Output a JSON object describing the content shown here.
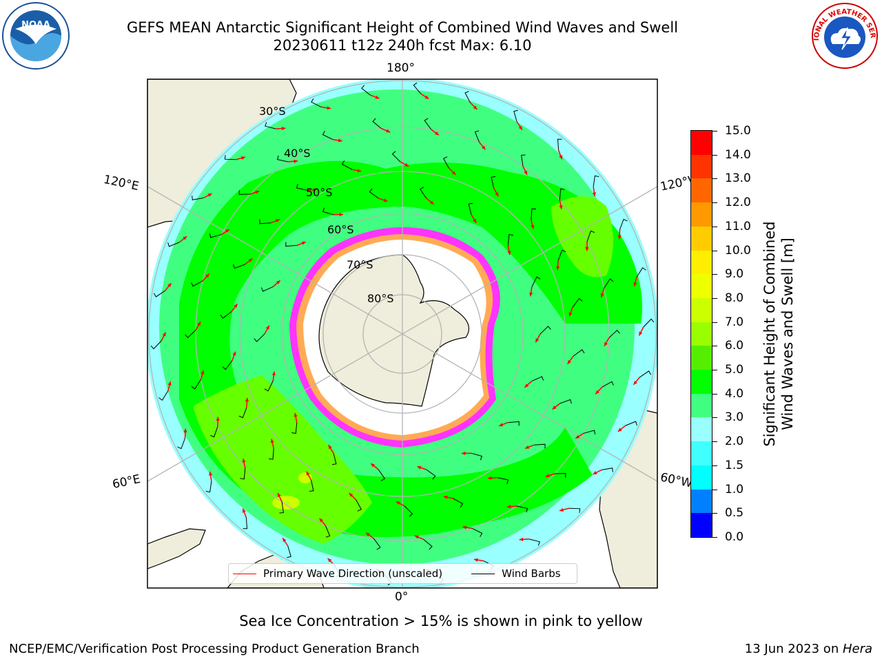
{
  "title": {
    "line1": "GEFS MEAN Antarctic Significant Height of Combined Wind Waves and Swell",
    "line2": "20230611 t12z 240h fcst   Max: 6.10"
  },
  "longitude_labels": {
    "top": "180°",
    "bottom": "0°",
    "upper_left": "120°E",
    "upper_right": "120°W",
    "lower_left": "60°E",
    "lower_right": "60°W"
  },
  "latitude_labels": [
    "30°S",
    "40°S",
    "50°S",
    "60°S",
    "70°S",
    "80°S"
  ],
  "colorbar": {
    "label": "Significant Height of Combined Wind Waves and Swell [m]",
    "label_line1": "Significant Height of Combined",
    "label_line2": "Wind Waves and Swell [m]",
    "ticks": [
      "0.0",
      "0.5",
      "1.0",
      "1.5",
      "2.0",
      "3.0",
      "4.0",
      "5.0",
      "6.0",
      "7.0",
      "8.0",
      "9.0",
      "10.0",
      "11.0",
      "12.0",
      "13.0",
      "14.0",
      "15.0"
    ],
    "colors": [
      "#0000ff",
      "#0080ff",
      "#00ffff",
      "#40ffff",
      "#99ffff",
      "#40ff80",
      "#00ff00",
      "#55ee00",
      "#99ff00",
      "#ccff00",
      "#eeff00",
      "#ffee00",
      "#ffcc00",
      "#ff9900",
      "#ff6600",
      "#ff3300",
      "#ff0000"
    ]
  },
  "legend": {
    "primary_wave": "Primary Wave Direction (unscaled)",
    "wind_barbs": "Wind Barbs"
  },
  "legend_colors": {
    "primary_wave": "#ff0000",
    "wind_barbs": "#000000"
  },
  "map_colors": {
    "land": "#efeddb",
    "ocean_low": "#99ffff",
    "ocean_mid": "#40ff80",
    "ocean_high": "#00ff00",
    "ocean_peak": "#66ff00",
    "sea_ice": "#ff33ff",
    "ice_fringe": "#ffaa55"
  },
  "footer": {
    "note": "Sea Ice Concentration > 15% is shown in pink to yellow",
    "credit": "NCEP/EMC/Verification Post Processing Product Generation Branch",
    "date": "13 Jun 2023 on ",
    "host": "Hera"
  },
  "logos": {
    "left": "NOAA",
    "right": "NATIONAL WEATHER SERVICE"
  },
  "icons": {
    "left_logo": "noaa-logo-icon",
    "right_logo": "nws-logo-icon"
  }
}
